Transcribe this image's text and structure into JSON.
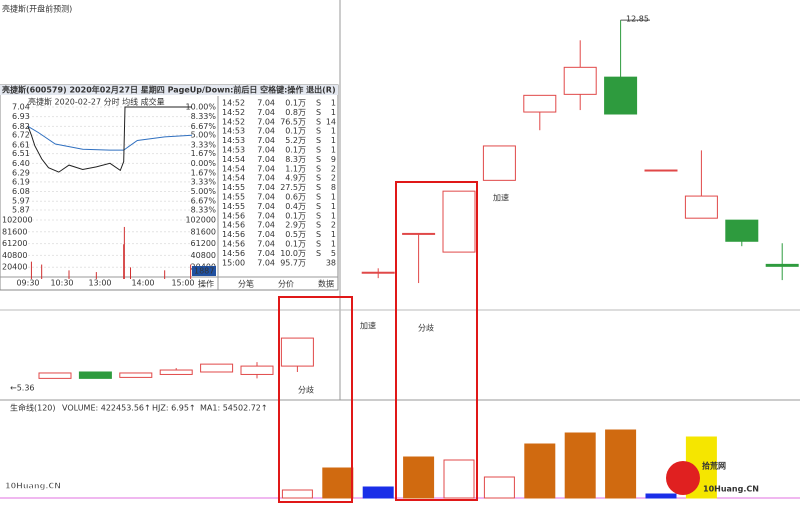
{
  "title": "亮捷斯(开盘前预测)",
  "chart_data": {
    "type": "candlestick",
    "ylim": [
      5.12,
      13.26
    ],
    "open": [
      5.56,
      5.69,
      5.58,
      5.64,
      5.69,
      5.64,
      5.81,
      null,
      7.72,
      8.51,
      8.13,
      9.59,
      10.98,
      11.34,
      11.69,
      9.8,
      8.82,
      8.78,
      7.88
    ],
    "high": [
      5.67,
      5.69,
      5.67,
      5.77,
      5.85,
      5.89,
      6.38,
      null,
      7.8,
      8.51,
      9.37,
      10.29,
      11.32,
      12.44,
      12.85,
      9.8,
      10.2,
      8.78,
      8.31
    ],
    "low": [
      5.56,
      5.56,
      5.58,
      5.64,
      5.69,
      5.56,
      5.69,
      null,
      7.6,
      7.5,
      8.13,
      9.59,
      10.61,
      11.02,
      10.94,
      9.8,
      8.82,
      8.25,
      7.56
    ],
    "close": [
      5.67,
      5.56,
      5.67,
      5.73,
      5.85,
      5.81,
      6.38,
      null,
      7.72,
      8.51,
      9.37,
      10.29,
      11.32,
      11.89,
      10.94,
      9.8,
      9.27,
      8.35,
      7.84
    ],
    "up_color": "#e04848",
    "down_color": "#2e9b3e",
    "price_marks": [
      {
        "value": 12.85,
        "label": "12.85"
      },
      {
        "value": 5.36,
        "label": "←5.36"
      }
    ],
    "volume": {
      "header": [
        "生命线(120)",
        "VOLUME: 422453.56↑",
        "HJZ: 6.95↑",
        "MA1: 54502.72↑"
      ],
      "ylim": [
        0,
        100
      ],
      "values": [
        null,
        null,
        null,
        null,
        null,
        null,
        8,
        30,
        11,
        41,
        38,
        21,
        54,
        65,
        68,
        4,
        61,
        null,
        null
      ],
      "colors": [
        "#d87010",
        "#d87010",
        "#d87010",
        "#d87010",
        "#d87010",
        "#d87010",
        "#ffffff",
        "#d06a10",
        "#1a2ee8",
        "#d06a10",
        "#ffffff",
        "#ffffff",
        "#d06a10",
        "#d06a10",
        "#d06a10",
        "#1a2ee8",
        "#f5e600",
        "#d06a10",
        "#d06a10"
      ]
    },
    "annotations": [
      {
        "text": "分歧",
        "color": "#e02020"
      },
      {
        "text": "加速",
        "color": "#2030c8"
      },
      {
        "text": "分歧",
        "color": "#e02020"
      },
      {
        "text": "加速",
        "color": "#2030c8"
      }
    ]
  },
  "inset": {
    "header": "亮捷斯(600579) 2020年02月27日 星期四 PageUp/Down:前后日 空格键:操作 退出(R)",
    "legend": "亮捷斯   2020-02-27 分时  均线  成交量",
    "xlim": [
      0,
      240
    ],
    "ylim": [
      5.87,
      7.04
    ],
    "yticks": [
      7.04,
      6.93,
      6.82,
      6.72,
      6.61,
      6.51,
      {
        "value": 6.4,
        "label": "6.40"
      },
      6.29,
      6.19,
      6.08,
      5.97,
      5.87
    ],
    "pct_labels": [
      "10.00%",
      "8.33%",
      "6.67%",
      "5.00%",
      "3.33%",
      "1.67%",
      "0.00%",
      "1.67%",
      "3.33%",
      "5.00%",
      "6.67%",
      "8.33%"
    ],
    "vol_ylim": [
      0,
      102000
    ],
    "vol_ticks": [
      102000,
      81600,
      61200,
      40800,
      20400
    ],
    "time_labels": [
      "09:30",
      "10:30",
      "13:00",
      "14:00",
      "15:00"
    ],
    "price": {
      "x": [
        0,
        5,
        10,
        20,
        30,
        45,
        60,
        80,
        100,
        120,
        135,
        140,
        142,
        180,
        220,
        240
      ],
      "values": [
        6.82,
        6.72,
        6.6,
        6.45,
        6.35,
        6.3,
        6.38,
        6.33,
        6.36,
        6.4,
        6.32,
        6.42,
        7.04,
        7.04,
        7.04,
        7.04
      ]
    },
    "avg": {
      "x": [
        0,
        15,
        40,
        80,
        120,
        140,
        160,
        200,
        240
      ],
      "values": [
        6.82,
        6.75,
        6.62,
        6.56,
        6.55,
        6.55,
        6.66,
        6.7,
        6.72
      ]
    },
    "vol": {
      "x": [
        5,
        20,
        60,
        100,
        140,
        141,
        150,
        200,
        238
      ],
      "values": [
        30000,
        25000,
        15000,
        12000,
        60000,
        90000,
        20000,
        15000,
        25000
      ]
    },
    "box_label": "1887",
    "op_label": "操作",
    "table": {
      "rows": [
        [
          "14:52",
          "7.04",
          "0.1万",
          "S",
          "1"
        ],
        [
          "14:52",
          "7.04",
          "0.8万",
          "S",
          "1"
        ],
        [
          "14:52",
          "7.04",
          "76.5万",
          "S",
          "14"
        ],
        [
          "14:53",
          "7.04",
          "0.1万",
          "S",
          "1"
        ],
        [
          "14:53",
          "7.04",
          "5.2万",
          "S",
          "1"
        ],
        [
          "14:53",
          "7.04",
          "0.1万",
          "S",
          "1"
        ],
        [
          "14:54",
          "7.04",
          "8.3万",
          "S",
          "9"
        ],
        [
          "14:54",
          "7.04",
          "1.1万",
          "S",
          "2"
        ],
        [
          "14:54",
          "7.04",
          "4.9万",
          "S",
          "2"
        ],
        [
          "14:55",
          "7.04",
          "27.5万",
          "S",
          "8"
        ],
        [
          "14:55",
          "7.04",
          "0.6万",
          "S",
          "1"
        ],
        [
          "14:55",
          "7.04",
          "0.4万",
          "S",
          "1"
        ],
        [
          "14:56",
          "7.04",
          "0.1万",
          "S",
          "1"
        ],
        [
          "14:56",
          "7.04",
          "2.9万",
          "S",
          "2"
        ],
        [
          "14:56",
          "7.04",
          "0.5万",
          "S",
          "1"
        ],
        [
          "14:56",
          "7.04",
          "0.1万",
          "S",
          "1"
        ],
        [
          "14:56",
          "7.04",
          "10.0万",
          "S",
          "5"
        ],
        [
          "15:00",
          "7.04",
          "95.7万",
          "",
          "38"
        ]
      ]
    },
    "tabs": [
      "分笔",
      "分价",
      "数据"
    ]
  },
  "watermarks": {
    "left": "10Huang.CN",
    "right_cn": "拾荒网",
    "right_en": "10Huang.CN"
  }
}
